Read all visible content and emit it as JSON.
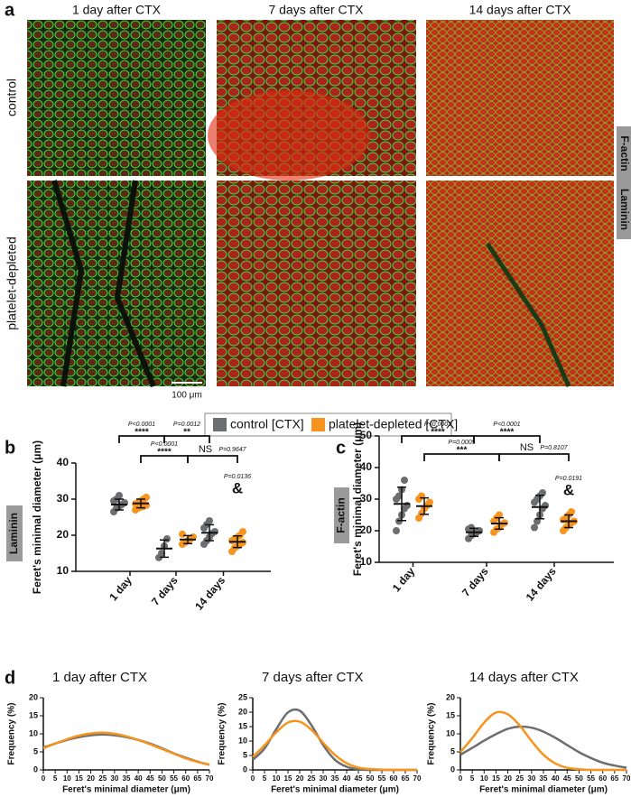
{
  "figure": {
    "panel_a": {
      "letter": "a",
      "columns": [
        "1 day after CTX",
        "7 days after CTX",
        "14 days after CTX"
      ],
      "rows": [
        "control",
        "platelet-depleted"
      ],
      "stains": [
        {
          "text": "F-actin",
          "color": "#e8251f"
        },
        {
          "text": "Laminin",
          "color": "#22b422"
        }
      ],
      "scale_bar": "100 μm"
    },
    "legend": [
      {
        "name": "control [CTX]",
        "color": "#6d6e70"
      },
      {
        "name": "platelet-depleted [CTX]",
        "color": "#f7941d"
      }
    ]
  },
  "chart_data": [
    {
      "type": "dot",
      "panel": "b",
      "stain": {
        "text": "Laminin",
        "color": "#22b422"
      },
      "ylabel": "Feret's minimal diameter (μm)",
      "categories": [
        "1 day",
        "7 days",
        "14 days"
      ],
      "ylim": [
        10,
        40
      ],
      "yticks": [
        10,
        20,
        30,
        40
      ],
      "series": [
        {
          "color": "#6d6e70",
          "values": [
            28.5,
            16.3,
            20.7
          ],
          "errors": [
            1.5,
            2.4,
            2.2
          ],
          "points": [
            [
              26.5,
              27.5,
              28,
              28.5,
              29,
              29.5,
              30,
              31
            ],
            [
              13.8,
              15,
              17,
              19
            ],
            [
              17.5,
              18.5,
              19.5,
              20.5,
              21,
              22,
              23,
              24
            ]
          ]
        },
        {
          "color": "#f7941d",
          "values": [
            28.8,
            18.8,
            18.2
          ],
          "errors": [
            1.2,
            1.1,
            1.6
          ],
          "points": [
            [
              27,
              27.5,
              27.8,
              28,
              28.3,
              28.7,
              29,
              29.5,
              30,
              30.5
            ],
            [
              17.5,
              18,
              18.5,
              19,
              19.5,
              20.3
            ],
            [
              15.5,
              16.5,
              17,
              17.5,
              18,
              18.5,
              19,
              19.5,
              20,
              21
            ]
          ]
        }
      ],
      "annotations": [
        {
          "p": "P<0.0001",
          "stars": "****"
        },
        {
          "p": "P=0.0012",
          "stars": "**"
        },
        {
          "p": "P<0.0001",
          "stars": "****"
        },
        {
          "label": "NS",
          "p": "P=0.9647"
        },
        {
          "p": "P=0.0136",
          "symbol": "&"
        }
      ]
    },
    {
      "type": "dot",
      "panel": "c",
      "stain": {
        "text": "F-actin",
        "color": "#e8251f"
      },
      "ylabel": "Feret's minimal diameter (μm)",
      "categories": [
        "1 day",
        "7 days",
        "14 days"
      ],
      "ylim": [
        10,
        50
      ],
      "yticks": [
        10,
        20,
        30,
        40,
        50
      ],
      "series": [
        {
          "color": "#6d6e70",
          "values": [
            28.5,
            19.5,
            27.5
          ],
          "errors": [
            5.3,
            1.3,
            3.7
          ],
          "points": [
            [
              20,
              23,
              25,
              27,
              28,
              30,
              31,
              33,
              36
            ],
            [
              17.5,
              18.5,
              19,
              19.5,
              20,
              20.5,
              21
            ],
            [
              21,
              23,
              25,
              27,
              28,
              29,
              30,
              31,
              32
            ]
          ]
        },
        {
          "color": "#f7941d",
          "values": [
            27.8,
            22.3,
            23
          ],
          "errors": [
            2.6,
            1.8,
            2
          ],
          "points": [
            [
              24,
              25.5,
              27,
              28,
              29,
              30,
              31
            ],
            [
              19.5,
              20.5,
              21,
              22,
              22.5,
              23,
              24,
              25
            ],
            [
              20,
              21,
              22,
              22.5,
              23,
              23.5,
              24,
              25,
              26
            ]
          ]
        }
      ],
      "annotations": [
        {
          "p": "P<0.0001",
          "stars": "****"
        },
        {
          "p": "P<0.0001",
          "stars": "****"
        },
        {
          "p": "P=0.0005",
          "stars": "***"
        },
        {
          "label": "NS",
          "p": "P=0.8107"
        },
        {
          "p": "P=0.0191",
          "symbol": "&"
        }
      ]
    },
    {
      "type": "line",
      "panel": "d",
      "title": "1 day after CTX",
      "xlabel": "Feret's minimal diameter (μm)",
      "ylabel": "Frequency (%)",
      "x": [
        0,
        5,
        10,
        15,
        20,
        25,
        30,
        35,
        40,
        45,
        50,
        55,
        60,
        65,
        70
      ],
      "xlim": [
        0,
        70
      ],
      "xticks": [
        0,
        5,
        10,
        15,
        20,
        25,
        30,
        35,
        40,
        45,
        50,
        55,
        60,
        65,
        70
      ],
      "ylim": [
        0,
        20
      ],
      "yticks": [
        0,
        5,
        10,
        15,
        20
      ],
      "series": [
        {
          "color": "#6d6e70",
          "values": [
            6.2,
            7.3,
            8.3,
            9.1,
            9.6,
            9.8,
            9.6,
            9.1,
            8.3,
            7.3,
            6.0,
            4.6,
            3.4,
            2.3,
            1.4
          ]
        },
        {
          "color": "#f7941d",
          "values": [
            6.0,
            7.3,
            8.5,
            9.5,
            10.1,
            10.3,
            10.0,
            9.3,
            8.3,
            7.1,
            5.8,
            4.5,
            3.2,
            2.2,
            1.5
          ]
        }
      ]
    },
    {
      "type": "line",
      "title": "7 days after CTX",
      "xlabel": "Feret's minimal diameter (μm)",
      "ylabel": "Frequency (%)",
      "x": [
        0,
        5,
        10,
        15,
        20,
        25,
        30,
        35,
        40,
        45,
        50,
        55,
        60,
        65,
        70
      ],
      "xlim": [
        0,
        70
      ],
      "xticks": [
        0,
        5,
        10,
        15,
        20,
        25,
        30,
        35,
        40,
        45,
        50,
        55,
        60,
        65,
        70
      ],
      "ylim": [
        0,
        25
      ],
      "yticks": [
        0,
        5,
        10,
        15,
        20,
        25
      ],
      "series": [
        {
          "color": "#6d6e70",
          "values": [
            3.5,
            7.4,
            14.1,
            19.9,
            20.5,
            15.5,
            8.6,
            3.5,
            1.1,
            0.2,
            0,
            0,
            0,
            0,
            0
          ]
        },
        {
          "color": "#f7941d",
          "values": [
            4.5,
            8.5,
            13.0,
            16.4,
            16.7,
            13.9,
            9.4,
            5.2,
            2.3,
            0.8,
            0.3,
            0.1,
            0,
            0,
            0
          ]
        }
      ]
    },
    {
      "type": "line",
      "title": "14 days after CTX",
      "xlabel": "Feret's minimal diameter (μm)",
      "ylabel": "Frequency (%)",
      "x": [
        0,
        5,
        10,
        15,
        20,
        25,
        30,
        35,
        40,
        45,
        50,
        55,
        60,
        65,
        70
      ],
      "xlim": [
        0,
        70
      ],
      "xticks": [
        0,
        5,
        10,
        15,
        20,
        25,
        30,
        35,
        40,
        45,
        50,
        55,
        60,
        65,
        70
      ],
      "ylim": [
        0,
        20
      ],
      "yticks": [
        0,
        5,
        10,
        15,
        20
      ],
      "series": [
        {
          "color": "#6d6e70",
          "values": [
            4.2,
            6.1,
            8.1,
            9.9,
            11.4,
            12.0,
            11.7,
            10.6,
            8.9,
            6.9,
            4.9,
            3.3,
            2.0,
            1.2,
            0.6
          ]
        },
        {
          "color": "#f7941d",
          "values": [
            4.9,
            8.8,
            13.1,
            15.9,
            15.4,
            12.3,
            8.0,
            4.2,
            1.8,
            0.6,
            0.2,
            0,
            0,
            0,
            0
          ]
        }
      ]
    }
  ]
}
